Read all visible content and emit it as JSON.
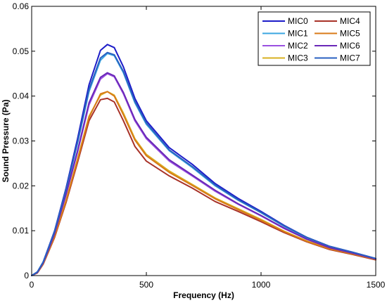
{
  "chart_data": {
    "type": "line",
    "xlabel": "Frequency (Hz)",
    "ylabel": "Sound Pressure (Pa)",
    "xlim": [
      0,
      1500
    ],
    "ylim": [
      0,
      0.06
    ],
    "xticks": [
      0,
      500,
      1000,
      1500
    ],
    "xtick_labels": [
      "0",
      "500",
      "1000",
      "1500"
    ],
    "yticks": [
      0,
      0.01,
      0.02,
      0.03,
      0.04,
      0.05,
      0.06
    ],
    "ytick_labels": [
      "0",
      "0.01",
      "0.02",
      "0.03",
      "0.04",
      "0.05",
      "0.06"
    ],
    "grid": false,
    "legend_position": "top-right",
    "x": [
      0,
      25,
      50,
      75,
      100,
      150,
      200,
      250,
      300,
      330,
      360,
      400,
      450,
      500,
      600,
      700,
      800,
      900,
      1000,
      1100,
      1200,
      1300,
      1400,
      1500
    ],
    "series": [
      {
        "name": "MIC0",
        "color": "#1c1cc8",
        "values": [
          0,
          0.0008,
          0.003,
          0.0065,
          0.01,
          0.0195,
          0.0305,
          0.0425,
          0.0502,
          0.0515,
          0.0508,
          0.0465,
          0.0395,
          0.0345,
          0.0285,
          0.0248,
          0.0205,
          0.0172,
          0.0143,
          0.0112,
          0.0085,
          0.0065,
          0.0052,
          0.0038
        ]
      },
      {
        "name": "MIC1",
        "color": "#3aa6e0",
        "values": [
          0,
          0.0008,
          0.003,
          0.0063,
          0.0098,
          0.019,
          0.0295,
          0.041,
          0.048,
          0.0495,
          0.049,
          0.0452,
          0.0385,
          0.0337,
          0.0278,
          0.0241,
          0.02,
          0.0168,
          0.014,
          0.011,
          0.0084,
          0.0064,
          0.0051,
          0.0037
        ]
      },
      {
        "name": "MIC2",
        "color": "#9a50e0",
        "values": [
          0,
          0.0007,
          0.0028,
          0.006,
          0.0093,
          0.018,
          0.0275,
          0.038,
          0.0438,
          0.045,
          0.0443,
          0.0405,
          0.0345,
          0.0305,
          0.0255,
          0.0222,
          0.0188,
          0.0159,
          0.0133,
          0.0105,
          0.0081,
          0.0062,
          0.005,
          0.0037
        ]
      },
      {
        "name": "MIC3",
        "color": "#d8b020",
        "values": [
          0,
          0.0007,
          0.0026,
          0.0057,
          0.0088,
          0.0168,
          0.026,
          0.0355,
          0.0402,
          0.041,
          0.0402,
          0.0362,
          0.0305,
          0.027,
          0.0233,
          0.0203,
          0.0173,
          0.0149,
          0.0125,
          0.0099,
          0.0077,
          0.006,
          0.0048,
          0.0036
        ]
      },
      {
        "name": "MIC4",
        "color": "#a83228",
        "values": [
          0,
          0.0006,
          0.0025,
          0.0055,
          0.0085,
          0.0163,
          0.0252,
          0.0345,
          0.0392,
          0.0395,
          0.0387,
          0.0345,
          0.0288,
          0.0255,
          0.0222,
          0.0195,
          0.0165,
          0.0143,
          0.012,
          0.0096,
          0.0075,
          0.0058,
          0.0047,
          0.0035
        ]
      },
      {
        "name": "MIC5",
        "color": "#d87a18",
        "values": [
          0,
          0.0007,
          0.0026,
          0.0056,
          0.0087,
          0.0166,
          0.0257,
          0.0352,
          0.0405,
          0.041,
          0.04,
          0.0358,
          0.0302,
          0.0267,
          0.023,
          0.0201,
          0.0171,
          0.0147,
          0.0123,
          0.0098,
          0.0076,
          0.0059,
          0.0048,
          0.0036
        ]
      },
      {
        "name": "MIC6",
        "color": "#6a28b8",
        "values": [
          0,
          0.0007,
          0.0028,
          0.006,
          0.0094,
          0.0182,
          0.0278,
          0.0385,
          0.0442,
          0.0452,
          0.0445,
          0.0408,
          0.0348,
          0.0308,
          0.0258,
          0.0224,
          0.019,
          0.016,
          0.0134,
          0.0106,
          0.0081,
          0.0062,
          0.005,
          0.0037
        ]
      },
      {
        "name": "MIC7",
        "color": "#2a60c0",
        "values": [
          0,
          0.0008,
          0.003,
          0.0064,
          0.0099,
          0.0192,
          0.0298,
          0.0415,
          0.0485,
          0.0497,
          0.0492,
          0.0455,
          0.0388,
          0.034,
          0.028,
          0.0243,
          0.0202,
          0.0169,
          0.0141,
          0.0111,
          0.0085,
          0.0065,
          0.0052,
          0.0038
        ]
      }
    ]
  }
}
